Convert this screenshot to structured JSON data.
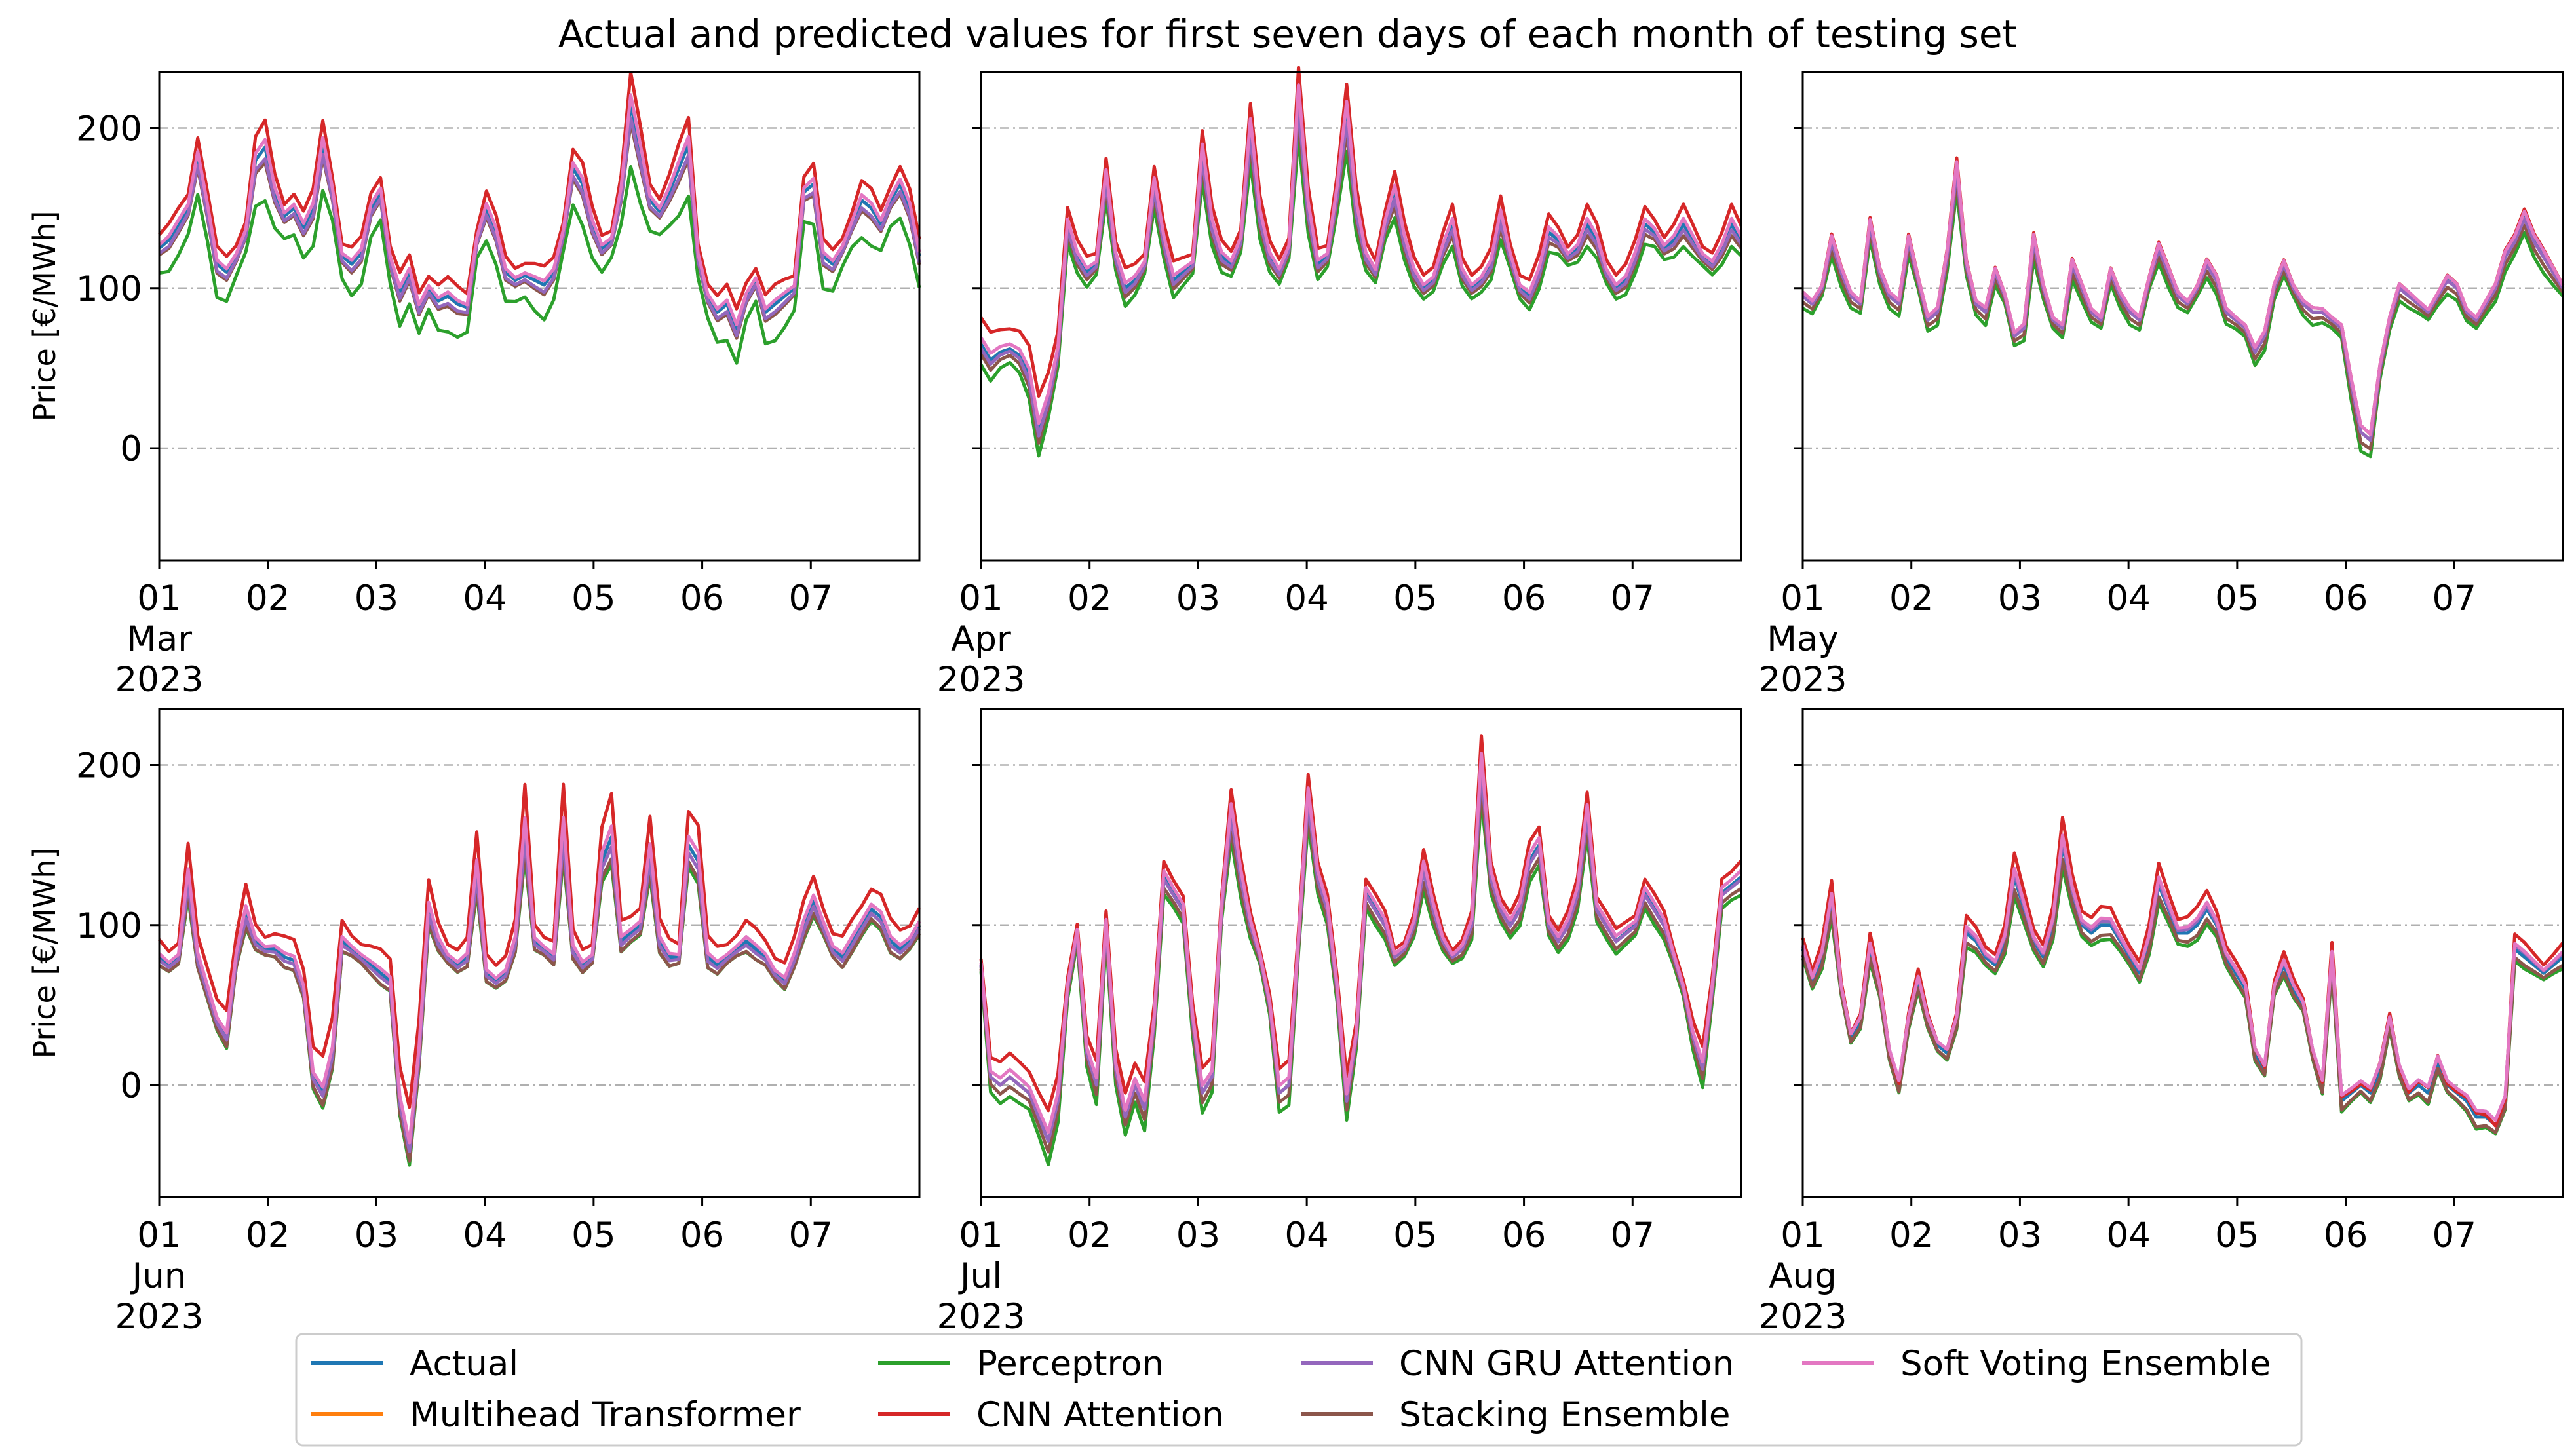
{
  "chart_data": {
    "type": "line",
    "title": "Actual and predicted values for first seven days of each month of testing set",
    "ylabel": "Price [€/MWh]",
    "ylim": [
      -70,
      235
    ],
    "yticks": [
      0,
      100,
      200
    ],
    "ytick_labels": [
      "0",
      "100",
      "200"
    ],
    "xlim": [
      0,
      7
    ],
    "xticks": [
      0,
      1,
      2,
      3,
      4,
      5,
      6
    ],
    "xtick_labels": [
      "01",
      "02",
      "03",
      "04",
      "05",
      "06",
      "07"
    ],
    "grid": "dash-dot horizontal at y ticks",
    "legend_location": "bottom-center",
    "series_styles": [
      {
        "name": "Actual",
        "color": "#1f77b4"
      },
      {
        "name": "Multihead Transformer",
        "color": "#ff7f0e"
      },
      {
        "name": "Perceptron",
        "color": "#2ca02c"
      },
      {
        "name": "CNN Attention",
        "color": "#d62728"
      },
      {
        "name": "CNN GRU Attention",
        "color": "#9467bd"
      },
      {
        "name": "Stacking Ensemble",
        "color": "#8c564b"
      },
      {
        "name": "Soft Voting Ensemble",
        "color": "#e377c2"
      }
    ],
    "panels": [
      {
        "month": "Mar",
        "year": "2023",
        "show_ylabel": true,
        "actual": [
          125,
          130,
          140,
          150,
          182,
          150,
          115,
          110,
          120,
          135,
          180,
          188,
          160,
          145,
          150,
          138,
          150,
          190,
          160,
          120,
          115,
          122,
          150,
          160,
          118,
          98,
          110,
          88,
          100,
          92,
          95,
          90,
          88,
          130,
          150,
          135,
          110,
          105,
          108,
          105,
          102,
          110,
          135,
          175,
          165,
          140,
          125,
          130,
          160,
          215,
          185,
          155,
          148,
          160,
          175,
          190,
          120,
          95,
          85,
          90,
          75,
          95,
          105,
          85,
          90,
          95,
          100,
          160,
          165,
          120,
          115,
          125,
          140,
          155,
          150,
          140,
          155,
          165,
          150,
          120
        ],
        "offsets": {
          "Multihead Transformer": [
            0,
            0,
            0
          ],
          "Perceptron": [
            -15,
            -25,
            -8
          ],
          "CNN Attention": [
            8,
            12,
            5
          ],
          "CNN GRU Attention": [
            -3,
            -6,
            -2
          ],
          "Stacking Ensemble": [
            -4,
            -8,
            -3
          ],
          "Soft Voting Ensemble": [
            2,
            4,
            0
          ]
        }
      },
      {
        "month": "Apr",
        "year": "2023",
        "show_ylabel": false,
        "actual": [
          65,
          55,
          60,
          62,
          58,
          45,
          10,
          30,
          60,
          140,
          120,
          110,
          115,
          170,
          120,
          100,
          105,
          115,
          165,
          130,
          105,
          110,
          115,
          185,
          140,
          120,
          115,
          130,
          200,
          145,
          120,
          110,
          125,
          220,
          150,
          115,
          120,
          160,
          210,
          150,
          120,
          110,
          140,
          160,
          130,
          110,
          100,
          105,
          125,
          140,
          110,
          100,
          105,
          115,
          145,
          120,
          100,
          95,
          110,
          135,
          130,
          120,
          125,
          140,
          130,
          110,
          100,
          105,
          120,
          140,
          135,
          125,
          130,
          140,
          130,
          120,
          115,
          125,
          140,
          130
        ],
        "offsets": {
          "Multihead Transformer": [
            0,
            0,
            0
          ],
          "Perceptron": [
            -8,
            -18,
            -5
          ],
          "CNN Attention": [
            8,
            10,
            12
          ],
          "CNN GRU Attention": [
            -2,
            -5,
            0
          ],
          "Stacking Ensemble": [
            -4,
            -10,
            -2
          ],
          "Soft Voting Ensemble": [
            2,
            5,
            3
          ]
        }
      },
      {
        "month": "May",
        "year": "2023",
        "show_ylabel": false,
        "actual": [
          95,
          90,
          100,
          130,
          110,
          95,
          90,
          140,
          110,
          95,
          90,
          130,
          105,
          80,
          85,
          120,
          175,
          115,
          90,
          85,
          110,
          95,
          70,
          75,
          130,
          100,
          80,
          75,
          115,
          100,
          85,
          80,
          110,
          95,
          85,
          80,
          105,
          125,
          110,
          95,
          90,
          100,
          115,
          105,
          85,
          80,
          75,
          60,
          70,
          100,
          115,
          100,
          90,
          85,
          85,
          80,
          75,
          40,
          10,
          5,
          50,
          80,
          100,
          95,
          90,
          85,
          95,
          105,
          100,
          85,
          80,
          90,
          100,
          120,
          130,
          145,
          130,
          120,
          110,
          100
        ],
        "offsets": {
          "Multihead Transformer": [
            0,
            0,
            0
          ],
          "Perceptron": [
            -6,
            -12,
            -5
          ],
          "CNN Attention": [
            2,
            6,
            2
          ],
          "CNN GRU Attention": [
            0,
            -3,
            0
          ],
          "Stacking Ensemble": [
            -3,
            -7,
            -3
          ],
          "Soft Voting Ensemble": [
            2,
            3,
            2
          ]
        }
      },
      {
        "month": "Jun",
        "year": "2023",
        "show_ylabel": true,
        "actual": [
          80,
          75,
          80,
          130,
          80,
          60,
          40,
          30,
          80,
          108,
          90,
          85,
          85,
          80,
          78,
          60,
          5,
          -5,
          20,
          90,
          85,
          80,
          75,
          70,
          65,
          -10,
          -40,
          20,
          110,
          90,
          80,
          75,
          80,
          135,
          70,
          65,
          70,
          90,
          160,
          90,
          85,
          80,
          160,
          85,
          75,
          80,
          140,
          155,
          90,
          95,
          100,
          145,
          90,
          80,
          80,
          150,
          140,
          80,
          75,
          80,
          85,
          90,
          85,
          80,
          70,
          65,
          80,
          100,
          115,
          100,
          85,
          80,
          90,
          100,
          110,
          105,
          90,
          85,
          90,
          100
        ],
        "offsets": {
          "Multihead Transformer": [
            0,
            0,
            0
          ],
          "Perceptron": [
            -5,
            -15,
            -5
          ],
          "CNN Attention": [
            10,
            20,
            15
          ],
          "CNN GRU Attention": [
            -2,
            -5,
            0
          ],
          "Stacking Ensemble": [
            -5,
            -10,
            -3
          ],
          "Soft Voting Ensemble": [
            2,
            6,
            2
          ]
        }
      },
      {
        "month": "Jul",
        "year": "2023",
        "show_ylabel": false,
        "actual": [
          75,
          5,
          0,
          5,
          0,
          -5,
          -20,
          -35,
          -10,
          60,
          95,
          20,
          0,
          100,
          10,
          -20,
          0,
          -15,
          40,
          130,
          120,
          110,
          40,
          -5,
          5,
          110,
          170,
          130,
          100,
          80,
          50,
          -5,
          0,
          90,
          180,
          130,
          110,
          60,
          -10,
          30,
          120,
          110,
          100,
          80,
          85,
          100,
          135,
          110,
          90,
          80,
          85,
          100,
          200,
          130,
          110,
          100,
          110,
          140,
          150,
          100,
          90,
          100,
          120,
          170,
          110,
          100,
          90,
          95,
          100,
          120,
          110,
          100,
          80,
          60,
          30,
          10,
          60,
          120,
          125,
          130
        ],
        "offsets": {
          "Multihead Transformer": [
            0,
            0,
            0
          ],
          "Perceptron": [
            -5,
            -12,
            -8
          ],
          "CNN Attention": [
            5,
            10,
            12
          ],
          "CNN GRU Attention": [
            0,
            -3,
            0
          ],
          "Stacking Ensemble": [
            -3,
            -8,
            -3
          ],
          "Soft Voting Ensemble": [
            2,
            4,
            3
          ]
        }
      },
      {
        "month": "Aug",
        "year": "2023",
        "show_ylabel": false,
        "actual": [
          85,
          65,
          80,
          115,
          60,
          30,
          40,
          85,
          60,
          20,
          0,
          40,
          65,
          40,
          25,
          20,
          40,
          95,
          90,
          80,
          75,
          90,
          130,
          110,
          90,
          80,
          100,
          150,
          120,
          100,
          95,
          100,
          100,
          90,
          80,
          70,
          90,
          125,
          110,
          95,
          95,
          100,
          110,
          100,
          80,
          70,
          60,
          20,
          10,
          60,
          75,
          60,
          50,
          20,
          0,
          80,
          -10,
          -5,
          0,
          -5,
          10,
          40,
          10,
          -5,
          0,
          -5,
          15,
          0,
          -5,
          -10,
          -20,
          -20,
          -25,
          -10,
          85,
          80,
          75,
          70,
          75,
          80
        ],
        "offsets": {
          "Multihead Transformer": [
            0,
            0,
            0
          ],
          "Perceptron": [
            -4,
            -10,
            -3
          ],
          "CNN Attention": [
            5,
            12,
            -5
          ],
          "CNN GRU Attention": [
            2,
            0,
            2
          ],
          "Stacking Ensemble": [
            -3,
            -6,
            -3
          ],
          "Soft Voting Ensemble": [
            2,
            4,
            2
          ]
        }
      }
    ]
  }
}
